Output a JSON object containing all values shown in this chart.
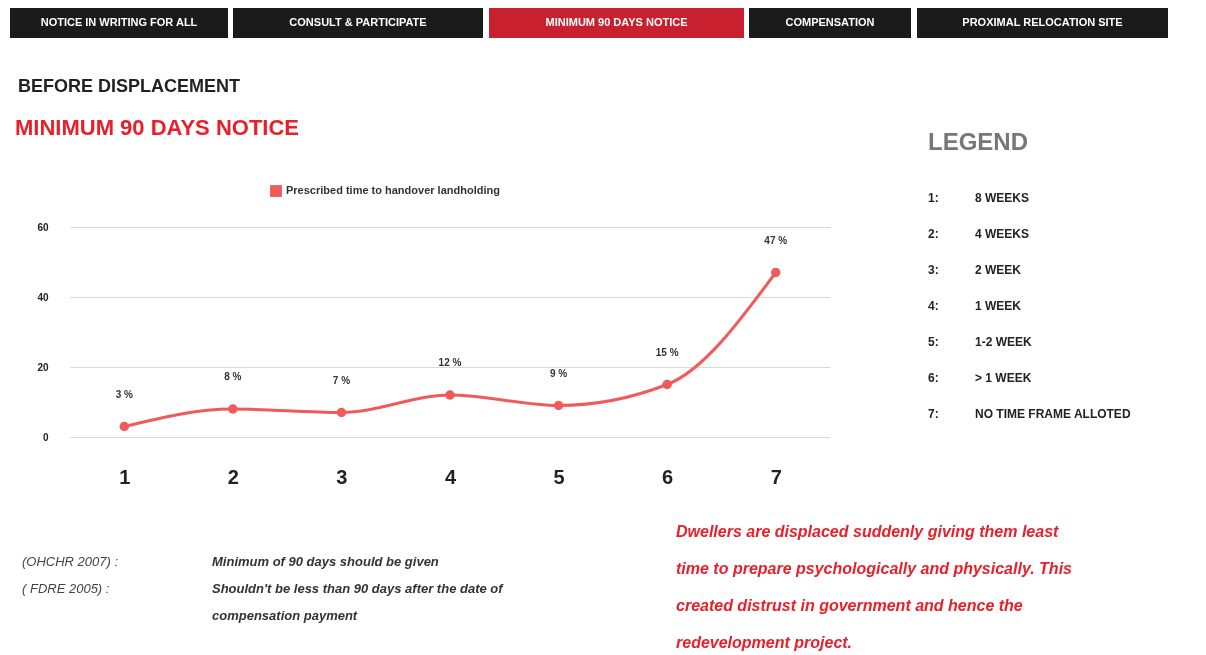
{
  "chart_data": {
    "type": "line",
    "title": "MINIMUM 90 DAYS NOTICE",
    "subtitle": "BEFORE DISPLACEMENT",
    "categories": [
      "1",
      "2",
      "3",
      "4",
      "5",
      "6",
      "7"
    ],
    "series": [
      {
        "name": "Prescribed time to handover landholding",
        "color": "#f15a5a",
        "values": [
          3,
          8,
          7,
          12,
          9,
          15,
          47
        ],
        "value_labels": [
          "3 %",
          "8 %",
          "7 %",
          "12  %",
          "9 %",
          "15  %",
          "47  %"
        ]
      }
    ],
    "ylim": [
      0,
      60
    ],
    "yticks": [
      0,
      20,
      40,
      60
    ],
    "grid": "y",
    "legend": "top",
    "marker": "circle",
    "line_style": "solid",
    "annotations": [
      "NOTICE IN WRITING FOR ALL",
      "CONSULT & PARTICIPATE",
      "MINIMUM 90 DAYS NOTICE",
      "COMPENSATION",
      "PROXIMAL RELOCATION SITE",
      "LEGEND",
      "1:",
      "2:",
      "3:",
      "4:",
      "5:",
      "6:",
      "7:",
      "8 WEEKS",
      "4 WEEKS",
      "2 WEEK",
      "1 WEEK",
      "1-2  WEEK",
      "> 1 WEEK",
      "NO TIME FRAME ALLOTED",
      "(OHCHR 2007) :",
      "( FDRE 2005) :",
      "Minimum of 90 days should be given",
      "Shouldn't be less than 90 days after the date of",
      "compensation payment",
      "Dwellers are displaced suddenly giving them least",
      "time to  prepare psychologically and physically. This",
      "created distrust in government and hence the",
      "redevelopment project."
    ]
  }
}
